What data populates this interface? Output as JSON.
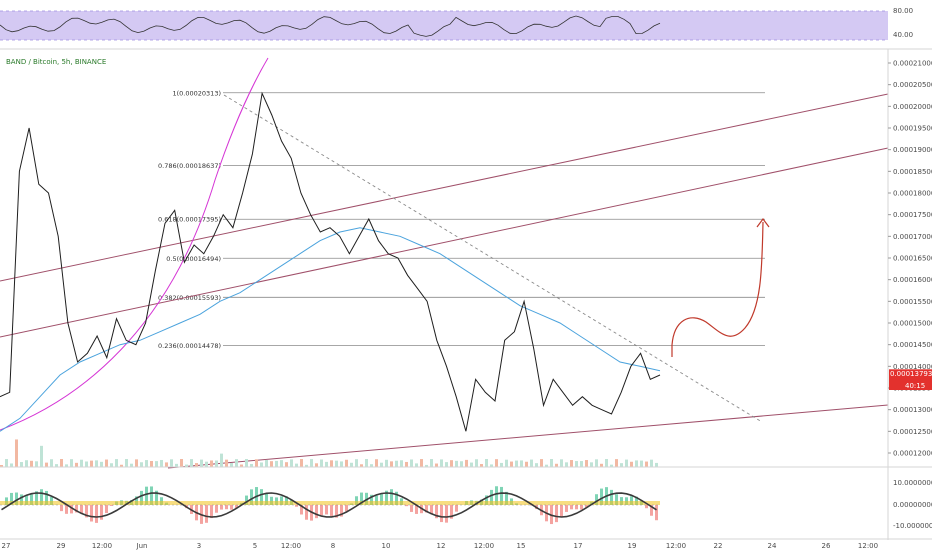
{
  "symbol_title": "BAND / Bitcoin, 5h, BINANCE",
  "colors": {
    "price": "#1f1f1f",
    "ma": "#4ba3dd",
    "channel": "#a0506a",
    "parabola": "#d535d5",
    "fib": "#8a8a8a",
    "trendline": "#8a8a8a",
    "projection": "#c0392b",
    "rsi_band": "#cfc3f2",
    "price_tag": "#e3312d",
    "timer_tag": "#e3312d"
  },
  "rsi_pane": {
    "labels": [
      "80.00",
      "40.00"
    ],
    "levels": [
      80,
      40
    ]
  },
  "price_axis": {
    "ticks": [
      "0.00021000",
      "0.00020500",
      "0.00020000",
      "0.00019500",
      "0.00019000",
      "0.00018500",
      "0.00018000",
      "0.00017500",
      "0.00017000",
      "0.00016500",
      "0.00016000",
      "0.00015500",
      "0.00015000",
      "0.00014500",
      "0.00014000",
      "0.00013500",
      "0.00013000",
      "0.00012500",
      "0.00012000"
    ],
    "tick_values": [
      0.00021,
      0.000205,
      0.0002,
      0.000195,
      0.00019,
      0.000185,
      0.00018,
      0.000175,
      0.00017,
      0.000165,
      0.00016,
      0.000155,
      0.00015,
      0.000145,
      0.00014,
      0.000135,
      0.00013,
      0.000125,
      0.00012
    ],
    "current_price": "0.00013793",
    "countdown": "40:15"
  },
  "osc_axis": {
    "ticks": [
      "10.00000000",
      "0.00000000",
      "-10.00000000"
    ],
    "tick_values": [
      10,
      0,
      -10
    ]
  },
  "time_axis": {
    "labels": [
      "27",
      "29",
      "12:00",
      "Jun",
      "3",
      "5",
      "12:00",
      "8",
      "10",
      "12",
      "12:00",
      "15",
      "17",
      "19",
      "12:00",
      "22",
      "24",
      "26",
      "12:00"
    ]
  },
  "fib_levels": [
    {
      "ratio": "1",
      "price": "0.00020313",
      "label": "1(0.00020313)"
    },
    {
      "ratio": "0.786",
      "price": "0.00018637",
      "label": "0.786(0.00018637)"
    },
    {
      "ratio": "0.618",
      "price": "0.00017395",
      "label": "0.618(0.00017395)"
    },
    {
      "ratio": "0.5",
      "price": "0.00016494",
      "label": "0.5(0.00016494)"
    },
    {
      "ratio": "0.382",
      "price": "0.00015593",
      "label": "0.382(0.00015593)"
    },
    {
      "ratio": "0.236",
      "price": "0.00014478",
      "label": "0.236(0.00014478)"
    }
  ],
  "chart_data": {
    "type": "line",
    "title": "BAND / Bitcoin, 5h, BINANCE",
    "xlabel": "",
    "ylabel": "",
    "ylim": [
      0.000118,
      0.000211
    ],
    "series": [
      {
        "values": [
          0.000133,
          0.000134,
          0.000185,
          0.000195,
          0.000182,
          0.00018,
          0.00017,
          0.00015,
          0.000141,
          0.000143,
          0.000147,
          0.000142,
          0.000151,
          0.000146,
          0.000145,
          0.00015,
          0.000162,
          0.000173,
          0.000176,
          0.000164,
          0.000168,
          0.000166,
          0.00017,
          0.000175,
          0.000172,
          0.00018,
          0.000189,
          0.000203,
          0.000198,
          0.000192,
          0.000188,
          0.00018,
          0.000175,
          0.000171,
          0.000172,
          0.00017,
          0.000166,
          0.00017,
          0.000174,
          0.000169,
          0.000166,
          0.000165,
          0.000161,
          0.000158,
          0.000155,
          0.000146,
          0.00014,
          0.000133,
          0.000125,
          0.000137,
          0.000134,
          0.000132,
          0.000146,
          0.000148,
          0.000155,
          0.000144,
          0.000131,
          0.000137,
          0.000134,
          0.000131,
          0.000133,
          0.000131,
          0.00013,
          0.000129,
          0.000134,
          0.00014,
          0.000143,
          0.000137,
          0.000138
        ]
      },
      {
        "values": [
          0.000125,
          0.000128,
          0.000133,
          0.000138,
          0.000141,
          0.000143,
          0.000145,
          0.000146,
          0.000148,
          0.00015,
          0.000152,
          0.000155,
          0.000157,
          0.00016,
          0.000163,
          0.000166,
          0.000169,
          0.000171,
          0.000172,
          0.000171,
          0.00017,
          0.000168,
          0.000166,
          0.000163,
          0.00016,
          0.000157,
          0.000154,
          0.000152,
          0.00015,
          0.000147,
          0.000144,
          0.000141,
          0.00014,
          0.000139
        ]
      }
    ]
  }
}
